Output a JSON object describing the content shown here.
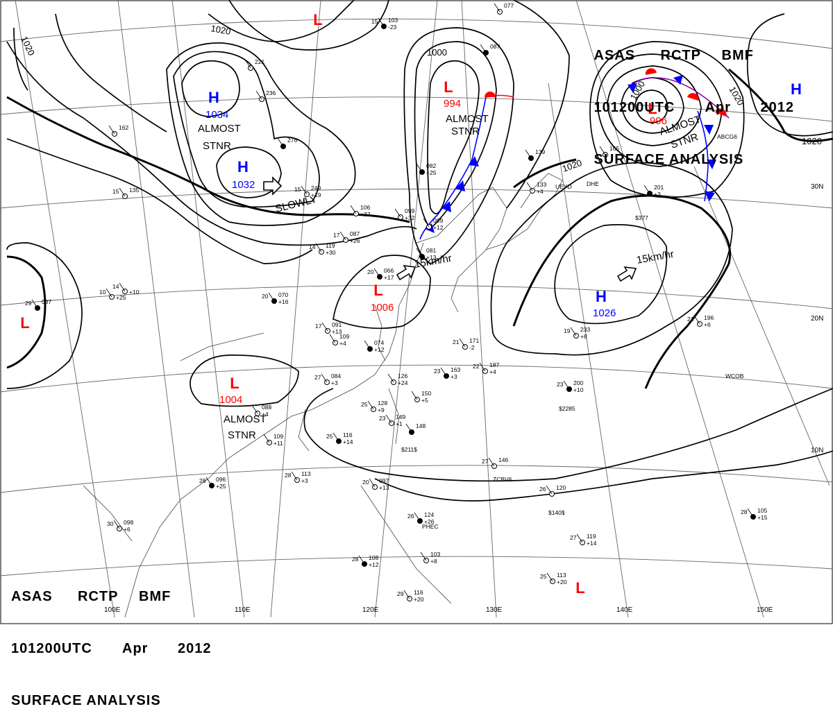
{
  "header": {
    "line1": [
      "ASAS",
      "RCTP",
      "BMF"
    ],
    "line2": [
      "101200UTC",
      "Apr",
      "2012"
    ],
    "line3": "SURFACE ANALYSIS"
  },
  "colors": {
    "isobar": "#000000",
    "high": "#0000ff",
    "low": "#ff0000",
    "cold_front": "#0000ff",
    "warm_front": "#ff0000",
    "grid": "#666666"
  },
  "pressure_centers": [
    {
      "type": "H",
      "value": "1034",
      "remark": "ALMOST STNR"
    },
    {
      "type": "H",
      "value": "1032",
      "remark": "SLOWLY"
    },
    {
      "type": "L",
      "value": "994",
      "remark": "ALMOST STNR"
    },
    {
      "type": "L",
      "value": "996",
      "remark": "ALMOST STNR"
    },
    {
      "type": "L",
      "value": "1006",
      "remark": "15km/hr"
    },
    {
      "type": "H",
      "value": "1026",
      "remark": "15km/hr"
    },
    {
      "type": "L",
      "value": "1004",
      "remark": "ALMOST STNR"
    },
    {
      "type": "H",
      "value": "",
      "remark": ""
    },
    {
      "type": "L",
      "value": "",
      "remark": ""
    },
    {
      "type": "L",
      "value": "",
      "remark": ""
    },
    {
      "type": "L",
      "value": "",
      "remark": ""
    }
  ],
  "isobar_labels": [
    "1020",
    "1020",
    "1000",
    "1000",
    "1020",
    "1020",
    "1020"
  ],
  "longitude_labels": [
    "100E",
    "110E",
    "120E",
    "130E",
    "140E",
    "150E"
  ],
  "latitude_labels": [
    "30N",
    "20N",
    "10N"
  ],
  "station_samples": [
    {
      "temp": "15",
      "pressure": "103",
      "tend": "-23"
    },
    {
      "temp": "27",
      "pressure": "146",
      "tend": ""
    },
    {
      "temp": "26",
      "pressure": "120",
      "tend": ""
    },
    {
      "temp": "23",
      "pressure": "200",
      "tend": "+10"
    },
    {
      "temp": "19",
      "pressure": "233",
      "tend": "+8"
    },
    {
      "temp": "21",
      "pressure": "196",
      "tend": "+6"
    },
    {
      "temp": "28",
      "pressure": "105",
      "tend": "+15"
    },
    {
      "temp": "27",
      "pressure": "119",
      "tend": "+14"
    },
    {
      "temp": "25",
      "pressure": "113",
      "tend": "+20"
    },
    {
      "temp": "28",
      "pressure": "108",
      "tend": "+12"
    },
    {
      "temp": "29",
      "pressure": "116",
      "tend": "+20"
    },
    {
      "temp": "20",
      "pressure": "097",
      "tend": "+13"
    },
    {
      "temp": "28",
      "pressure": "096",
      "tend": "+25"
    },
    {
      "temp": "30",
      "pressure": "098",
      "tend": "+6"
    },
    {
      "temp": "28",
      "pressure": "113",
      "tend": "+3"
    },
    {
      "temp": "25",
      "pressure": "116",
      "tend": "+14"
    },
    {
      "temp": "27",
      "pressure": "084",
      "tend": "+3"
    },
    {
      "temp": "17",
      "pressure": "091",
      "tend": "+13"
    },
    {
      "temp": "20",
      "pressure": "070",
      "tend": "+16"
    },
    {
      "temp": "14",
      "pressure": "",
      "tend": "+10"
    },
    {
      "temp": "10",
      "pressure": "",
      "tend": "+25"
    },
    {
      "temp": "29",
      "pressure": "037",
      "tend": ""
    },
    {
      "temp": "14",
      "pressure": "119",
      "tend": "+30"
    },
    {
      "temp": "17",
      "pressure": "087",
      "tend": "+26"
    },
    {
      "temp": "20",
      "pressure": "066",
      "tend": "+17"
    },
    {
      "temp": "25",
      "pressure": "128",
      "tend": "+9"
    },
    {
      "temp": "23",
      "pressure": "149",
      "tend": "+1"
    },
    {
      "temp": "23",
      "pressure": "163",
      "tend": "+3"
    },
    {
      "temp": "21",
      "pressure": "171",
      "tend": "-2"
    },
    {
      "temp": "22",
      "pressure": "187",
      "tend": "+4"
    },
    {
      "temp": "26",
      "pressure": "124",
      "tend": "+26"
    },
    {
      "temp": "15",
      "pressure": "249",
      "tend": "+19"
    },
    {
      "temp": "",
      "pressure": "099",
      "tend": "+32"
    },
    {
      "temp": "",
      "pressure": "082",
      "tend": "+25"
    },
    {
      "temp": "15",
      "pressure": "135",
      "tend": ""
    },
    {
      "temp": "",
      "pressure": "162",
      "tend": ""
    },
    {
      "temp": "",
      "pressure": "276",
      "tend": ""
    },
    {
      "temp": "",
      "pressure": "236",
      "tend": ""
    },
    {
      "temp": "",
      "pressure": "221",
      "tend": ""
    },
    {
      "temp": "",
      "pressure": "201",
      "tend": "+3"
    },
    {
      "temp": "",
      "pressure": "126",
      "tend": "+24"
    },
    {
      "temp": "",
      "pressure": "150",
      "tend": "+5"
    },
    {
      "temp": "",
      "pressure": "148",
      "tend": ""
    },
    {
      "temp": "",
      "pressure": "109",
      "tend": "+11"
    },
    {
      "temp": "",
      "pressure": "088",
      "tend": "+4"
    },
    {
      "temp": "",
      "pressure": "074",
      "tend": "+12"
    },
    {
      "temp": "",
      "pressure": "109",
      "tend": "+4"
    },
    {
      "temp": "",
      "pressure": "103",
      "tend": "+8"
    },
    {
      "temp": "",
      "pressure": "087",
      "tend": ""
    },
    {
      "temp": "",
      "pressure": "077",
      "tend": ""
    },
    {
      "temp": "",
      "pressure": "099",
      "tend": "+12"
    },
    {
      "temp": "",
      "pressure": "081",
      "tend": "+13"
    },
    {
      "temp": "",
      "pressure": "106",
      "tend": "+37"
    },
    {
      "temp": "",
      "pressure": "133",
      "tend": "+4"
    },
    {
      "temp": "",
      "pressure": "139",
      "tend": ""
    },
    {
      "temp": "",
      "pressure": "165",
      "tend": ""
    }
  ],
  "ship_callsigns": [
    "ABCG6",
    "DHE",
    "UEYD",
    "ZCBV6",
    "PHEC",
    "WCOB"
  ],
  "ship_values": [
    "$377",
    "$2285",
    "$140$",
    "$211$"
  ]
}
